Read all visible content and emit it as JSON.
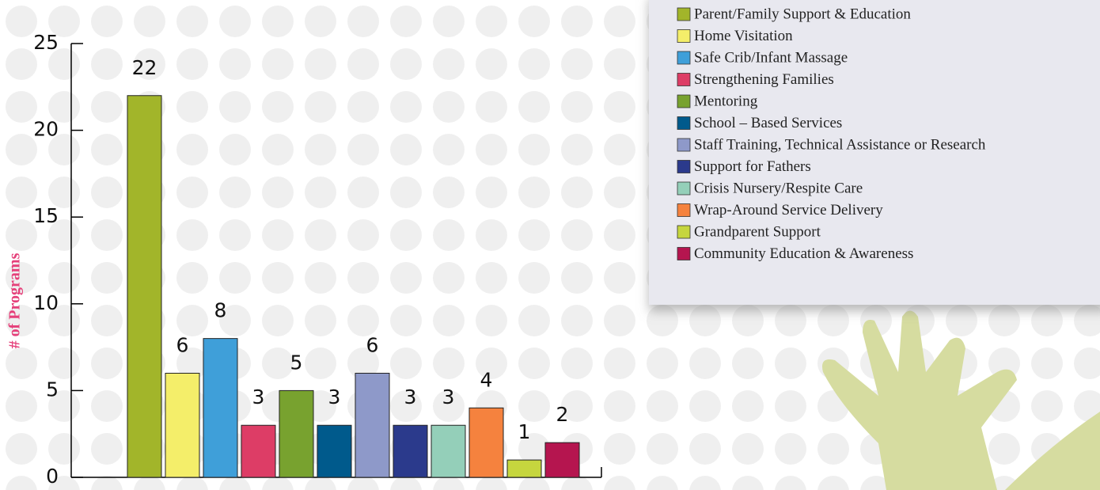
{
  "chart_data": {
    "type": "bar",
    "y_label": "# of Programs",
    "categories": [
      "Parent/Family Support & Education",
      "Home Visitation",
      "Safe Crib/Infant Massage",
      "Strengthening Families",
      "Mentoring",
      "School – Based Services",
      "Staff Training, Technical Assistance or Research",
      "Support for Fathers",
      "Crisis Nursery/Respite Care",
      "Wrap-Around Service Delivery",
      "Grandparent Support",
      "Community Education & Awareness"
    ],
    "values": [
      22,
      6,
      8,
      3,
      5,
      3,
      6,
      3,
      3,
      4,
      1,
      2
    ],
    "colors": [
      "#a2b52a",
      "#f4ee6a",
      "#3f9fd9",
      "#dd3d66",
      "#78a22f",
      "#005a8c",
      "#8e99c9",
      "#2b3a8c",
      "#94cfb9",
      "#f5823e",
      "#c6d63e",
      "#b5154f"
    ],
    "ylim": [
      0,
      25
    ],
    "yticks": [
      0,
      5,
      10,
      15,
      20,
      25
    ]
  }
}
